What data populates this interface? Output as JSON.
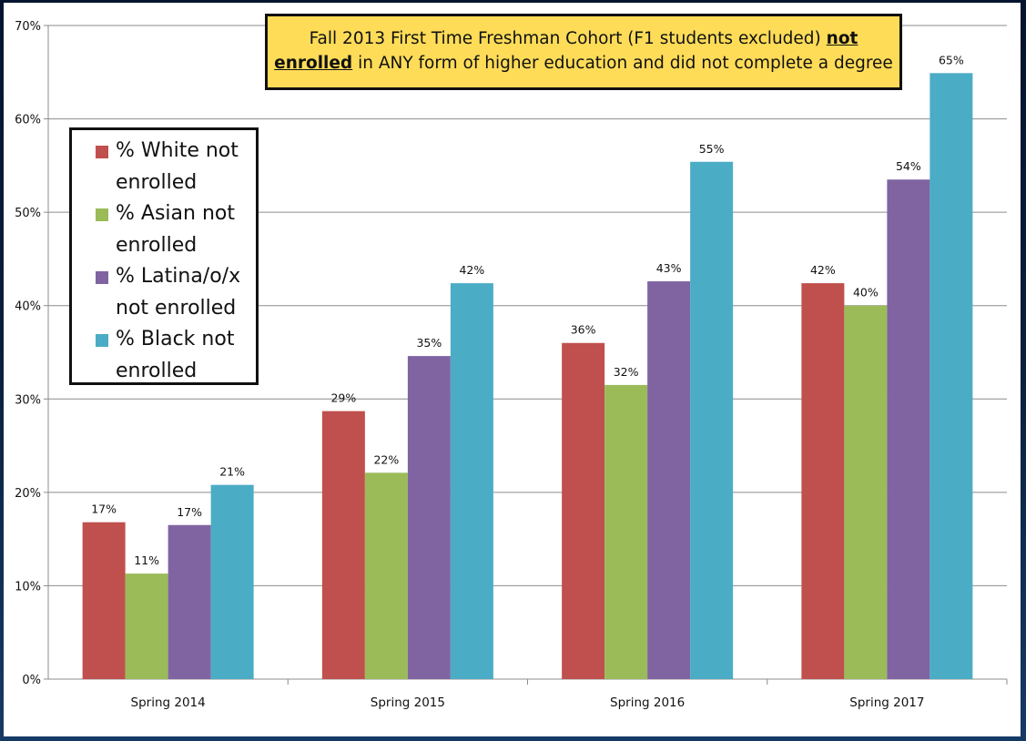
{
  "title": {
    "line1": "Fall 2013 First Time Freshman Cohort (F1 students excluded)",
    "emph1": "not",
    "emph2": "enrolled",
    "line2_rest": "in ANY form of higher education and did not complete a degree"
  },
  "chart_data": {
    "type": "bar",
    "categories": [
      "Spring 2014",
      "Spring 2015",
      "Spring 2016",
      "Spring 2017"
    ],
    "series": [
      {
        "name": "% White not enrolled",
        "legend_lines": [
          "% White not",
          "enrolled"
        ],
        "color": "#c0504d",
        "values": [
          16.8,
          28.7,
          36.0,
          42.4
        ],
        "labels": [
          "17%",
          "29%",
          "36%",
          "42%"
        ]
      },
      {
        "name": "% Asian not enrolled",
        "legend_lines": [
          "% Asian not",
          "enrolled"
        ],
        "color": "#9bbb59",
        "values": [
          11.3,
          22.1,
          31.5,
          40.0
        ],
        "labels": [
          "11%",
          "22%",
          "32%",
          "40%"
        ]
      },
      {
        "name": "% Latina/o/x not enrolled",
        "legend_lines": [
          "% Latina/o/x",
          "not enrolled"
        ],
        "color": "#8064a2",
        "values": [
          16.5,
          34.6,
          42.6,
          53.5
        ],
        "labels": [
          "17%",
          "35%",
          "43%",
          "54%"
        ]
      },
      {
        "name": "% Black not enrolled",
        "legend_lines": [
          "% Black  not",
          "enrolled"
        ],
        "color": "#4bacc6",
        "values": [
          20.8,
          42.4,
          55.4,
          64.9
        ],
        "labels": [
          "21%",
          "42%",
          "55%",
          "65%"
        ]
      }
    ],
    "ylim": [
      0,
      70
    ],
    "yticks": [
      "0%",
      "10%",
      "20%",
      "30%",
      "40%",
      "50%",
      "60%",
      "70%"
    ],
    "grid": true,
    "legend_position": "left"
  }
}
